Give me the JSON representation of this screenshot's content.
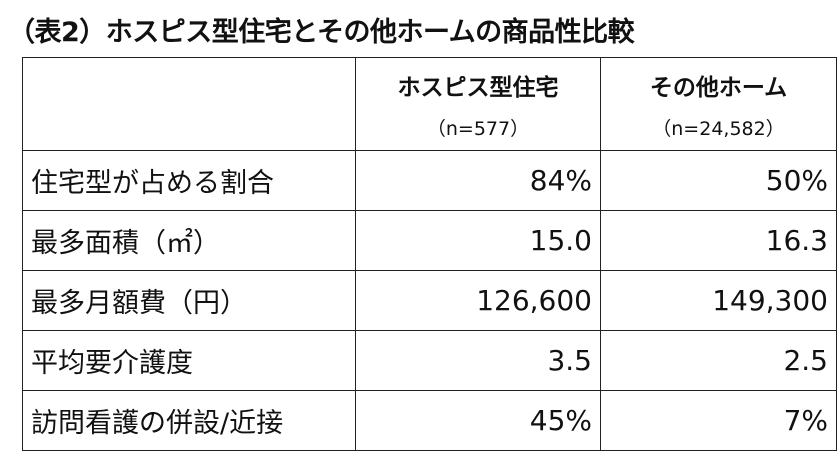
{
  "title": "（表2）ホスピス型住宅とその他ホームの商品性比較",
  "table": {
    "columns": [
      {
        "label": "ホスピス型住宅",
        "n": "（n=577）"
      },
      {
        "label": "その他ホーム",
        "n": "（n=24,582）"
      }
    ],
    "rows": [
      [
        "住宅型が占める割合",
        "84%",
        "50%"
      ],
      [
        "最多面積（㎡）",
        "15.0",
        "16.3"
      ],
      [
        "最多月額費（円）",
        "126,600",
        "149,300"
      ],
      [
        "平均要介護度",
        "3.5",
        "2.5"
      ],
      [
        "訪問看護の併設/近接",
        "45%",
        "7%"
      ]
    ]
  }
}
